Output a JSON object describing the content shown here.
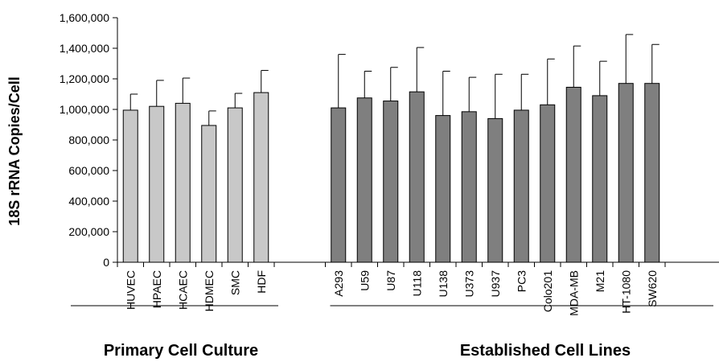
{
  "chart_data": {
    "type": "bar",
    "ylabel": "18S rRNA Copies/Cell",
    "ylim": [
      0,
      1600000
    ],
    "yticks": [
      0,
      200000,
      400000,
      600000,
      800000,
      1000000,
      1200000,
      1400000,
      1600000
    ],
    "ytick_labels": [
      "0",
      "200,000",
      "400,000",
      "600,000",
      "800,000",
      "1,000,000",
      "1,200,000",
      "1,400,000",
      "1,600,000"
    ],
    "grid": false,
    "groups": [
      {
        "label": "Primary Cell Culture",
        "color": "#c8c8c8",
        "categories": [
          "HUVEC",
          "HPAEC",
          "HCAEC",
          "HDMEC",
          "SMC",
          "HDF"
        ],
        "values": [
          995000,
          1020000,
          1040000,
          895000,
          1010000,
          1110000
        ],
        "errors": [
          105000,
          170000,
          165000,
          95000,
          95000,
          145000
        ]
      },
      {
        "label": "Established Cell Lines",
        "color": "#7f7f7f",
        "categories": [
          "A293",
          "U59",
          "U87",
          "U118",
          "U138",
          "U373",
          "U937",
          "PC3",
          "Colo201",
          "MDA-MB",
          "M21",
          "HT-1080",
          "SW620"
        ],
        "values": [
          1010000,
          1075000,
          1055000,
          1115000,
          960000,
          985000,
          940000,
          995000,
          1030000,
          1145000,
          1090000,
          1170000,
          1170000
        ],
        "errors": [
          350000,
          175000,
          220000,
          290000,
          290000,
          225000,
          290000,
          235000,
          300000,
          270000,
          225000,
          320000,
          255000
        ]
      }
    ]
  }
}
